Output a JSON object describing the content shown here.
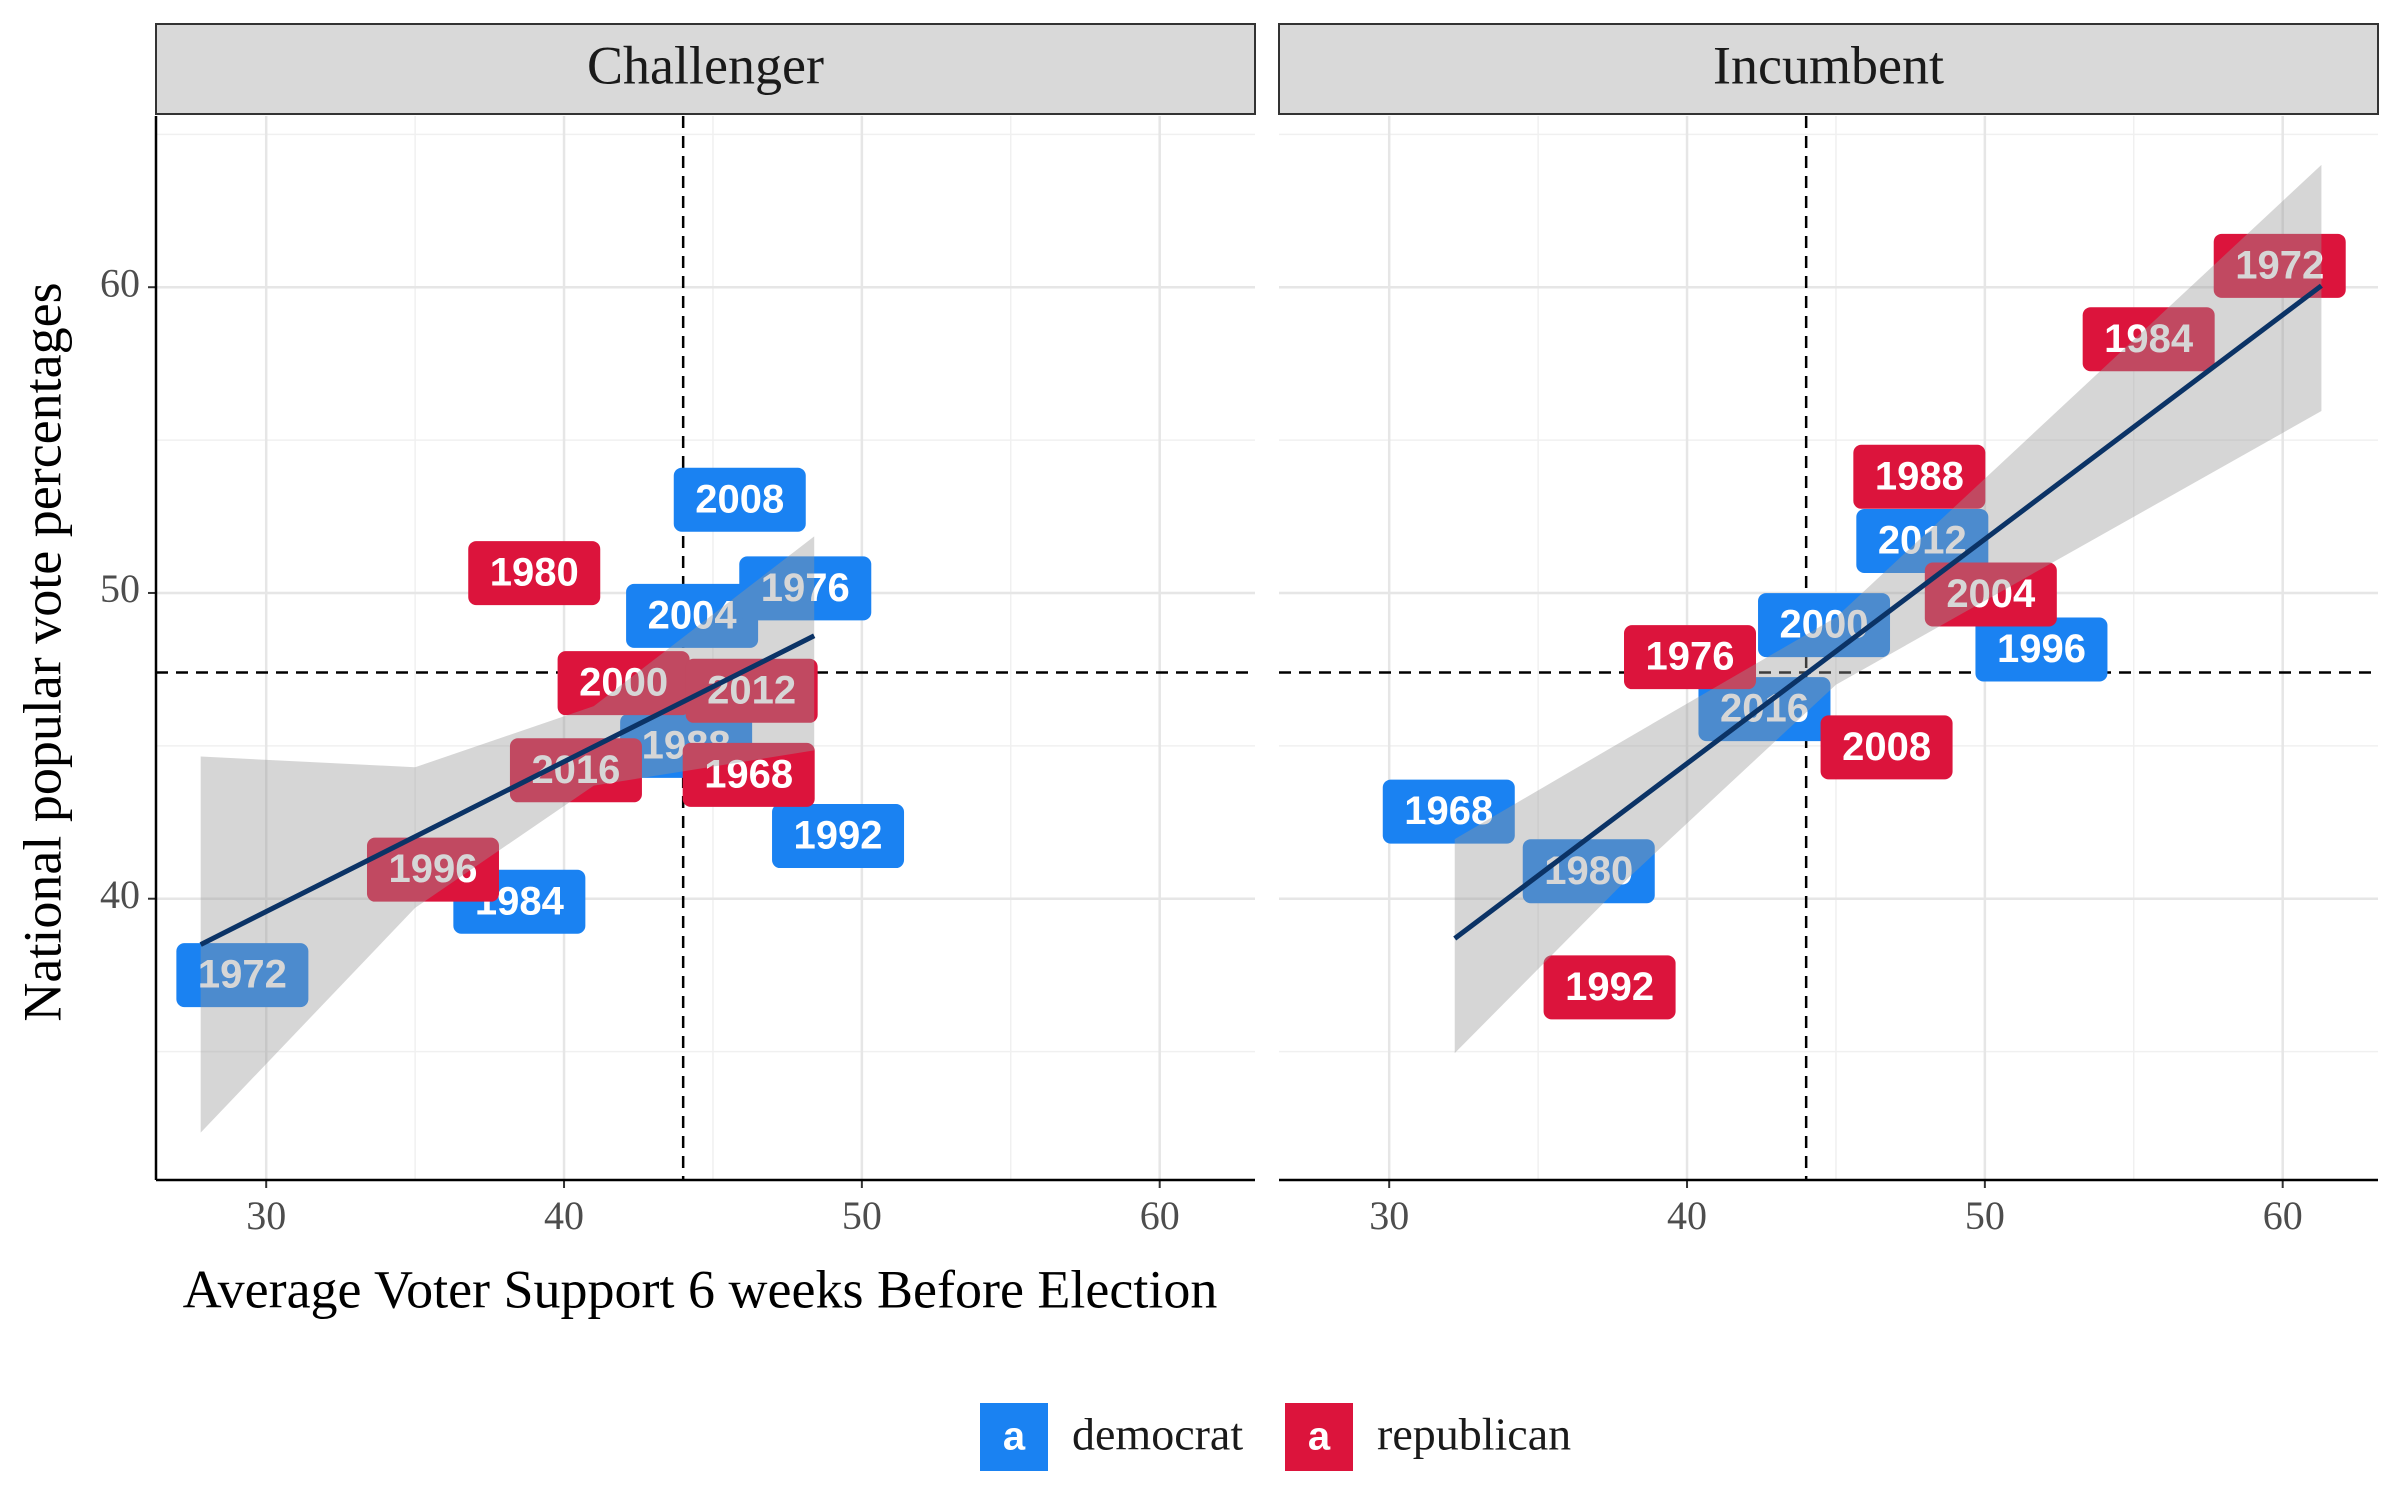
{
  "chart_data": {
    "type": "scatter",
    "xlabel": "Average Voter Support 6 weeks Before Election",
    "ylabel": "National popular vote percentages",
    "xlim": [
      26.3,
      63.2
    ],
    "xticks": [
      30,
      40,
      50,
      60
    ],
    "minor_xticks": [
      35,
      45,
      55
    ],
    "ylim": [
      30.8,
      65.6
    ],
    "yticks": [
      40,
      50,
      60
    ],
    "minor_yticks": [
      35,
      45,
      55,
      65
    ],
    "hline": 47.4,
    "vline": 44,
    "grid": true,
    "legend": "bottom",
    "legend_key": "a",
    "facets": [
      {
        "title": "Challenger",
        "series": [
          {
            "name": "democrat",
            "color": "#1a82f2",
            "labels": [
              "1972",
              "1984",
              "1988",
              "1992",
              "2004",
              "1976",
              "2008"
            ],
            "x": [
              29.2,
              38.5,
              44.1,
              49.2,
              44.3,
              48.1,
              45.9
            ],
            "y": [
              37.5,
              39.9,
              45.0,
              42.05,
              49.25,
              50.15,
              53.05
            ]
          },
          {
            "name": "republican",
            "color": "#dc143c",
            "labels": [
              "1996",
              "2016",
              "1968",
              "2000",
              "2012",
              "1980"
            ],
            "x": [
              35.6,
              40.4,
              46.2,
              42.0,
              46.3,
              39.0
            ],
            "y": [
              40.95,
              44.2,
              44.05,
              47.05,
              46.8,
              50.65
            ]
          }
        ],
        "fit": {
          "x": [
            27.8,
            48.4
          ],
          "y": [
            38.5,
            48.6
          ]
        },
        "band": {
          "x": [
            27.8,
            35,
            41,
            48.4
          ],
          "upper": [
            44.65,
            44.3,
            46.3,
            51.85
          ],
          "lower": [
            32.35,
            39.7,
            43.7,
            44.85
          ]
        }
      },
      {
        "title": "Incumbent",
        "series": [
          {
            "name": "democrat",
            "color": "#1a82f2",
            "labels": [
              "1968",
              "1980",
              "2016",
              "2000",
              "2012",
              "1996"
            ],
            "x": [
              32.0,
              36.7,
              42.6,
              44.6,
              47.9,
              51.9
            ],
            "y": [
              42.85,
              40.9,
              46.2,
              48.95,
              51.7,
              48.15
            ]
          },
          {
            "name": "republican",
            "color": "#dc143c",
            "labels": [
              "1992",
              "1976",
              "2008",
              "1988",
              "2004",
              "1984",
              "1972"
            ],
            "x": [
              37.4,
              40.1,
              46.7,
              47.8,
              50.2,
              55.5,
              59.9
            ],
            "y": [
              37.1,
              47.9,
              44.95,
              53.8,
              49.95,
              58.3,
              60.7
            ]
          }
        ],
        "fit": {
          "x": [
            32.2,
            61.3
          ],
          "y": [
            38.7,
            60.05
          ]
        },
        "band": {
          "x": [
            32.2,
            38,
            45,
            61.3
          ],
          "upper": [
            41.95,
            45.25,
            49.2,
            64.0
          ],
          "lower": [
            34.95,
            40.65,
            47.0,
            55.95
          ]
        }
      }
    ]
  }
}
